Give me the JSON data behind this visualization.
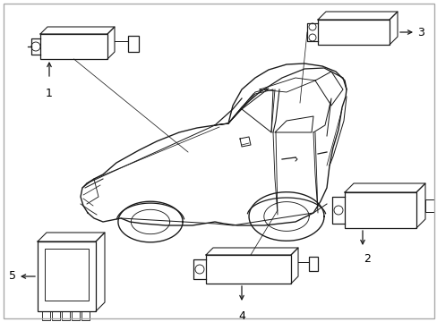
{
  "bg_color": "#ffffff",
  "line_color": "#1a1a1a",
  "label_color": "#000000",
  "fig_width": 4.89,
  "fig_height": 3.6,
  "dpi": 100,
  "border_color": "#aaaaaa"
}
